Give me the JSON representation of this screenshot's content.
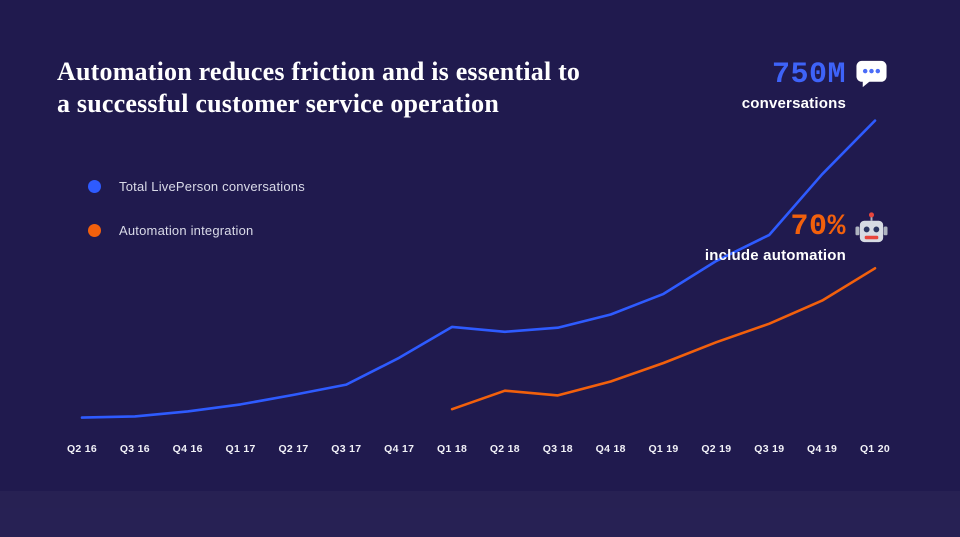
{
  "title": {
    "line1": "Automation reduces friction and is essential to",
    "line2": "a successful customer service operation"
  },
  "legend": [
    {
      "label": "Total LivePerson conversations",
      "color": "#2e5bff"
    },
    {
      "label": "Automation integration",
      "color": "#f2600c"
    }
  ],
  "callouts": {
    "conversations": {
      "value": "750M",
      "label": "conversations",
      "icon": "speech-bubble-icon",
      "color": "#3e63f8"
    },
    "automation": {
      "value": "70%",
      "label": "include automation",
      "icon": "robot-icon",
      "color": "#f2600c"
    }
  },
  "colors": {
    "background": "#201a4e",
    "blue_line": "#2e5bff",
    "orange_line": "#f2600c",
    "text": "#ffffff"
  },
  "chart_data": {
    "type": "line",
    "categories": [
      "Q2 16",
      "Q3 16",
      "Q4 16",
      "Q1 17",
      "Q2 17",
      "Q3 17",
      "Q4 17",
      "Q1 18",
      "Q2 18",
      "Q3 18",
      "Q4 18",
      "Q1 19",
      "Q2 19",
      "Q3 19",
      "Q4 19",
      "Q1 20"
    ],
    "series": [
      {
        "name": "Total LivePerson conversations",
        "color": "#2e5bff",
        "unit": "millions of conversations",
        "ylim": [
          0,
          800
        ],
        "start_index": 0,
        "values": [
          30,
          33,
          45,
          62,
          85,
          110,
          175,
          250,
          238,
          248,
          280,
          330,
          410,
          473,
          620,
          750
        ]
      },
      {
        "name": "Automation integration",
        "color": "#f2600c",
        "unit": "percent",
        "ylim": [
          0,
          100
        ],
        "start_index": 7,
        "values": [
          9,
          17,
          15,
          21,
          29,
          38,
          46,
          56,
          70
        ]
      }
    ],
    "annotations": [
      "750M conversations",
      "70% include automation"
    ],
    "legend_position": "top-left",
    "grid": false,
    "x_axis_labels_shown": true,
    "y_axis_labels_shown": false
  }
}
